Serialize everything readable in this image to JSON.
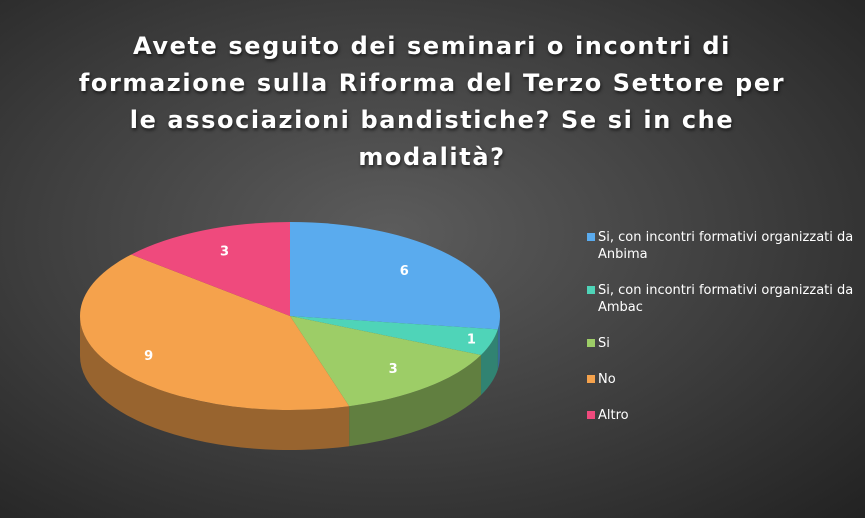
{
  "chart_data": {
    "type": "pie3d",
    "title": "Avete seguito dei seminari o incontri di formazione sulla Riforma del Terzo Settore per le associazioni bandistiche? Se si in che modalità?",
    "categories": [
      "Si, con incontri formativi organizzati da Anbima",
      "Si, con incontri formativi organizzati da Ambac",
      "Si",
      "No",
      "Altro"
    ],
    "values": [
      6,
      1,
      3,
      9,
      3
    ],
    "colors": [
      "#5aabee",
      "#4fd4b8",
      "#9dcd67",
      "#f5a24c",
      "#ef4a7d"
    ],
    "legend": "right"
  }
}
